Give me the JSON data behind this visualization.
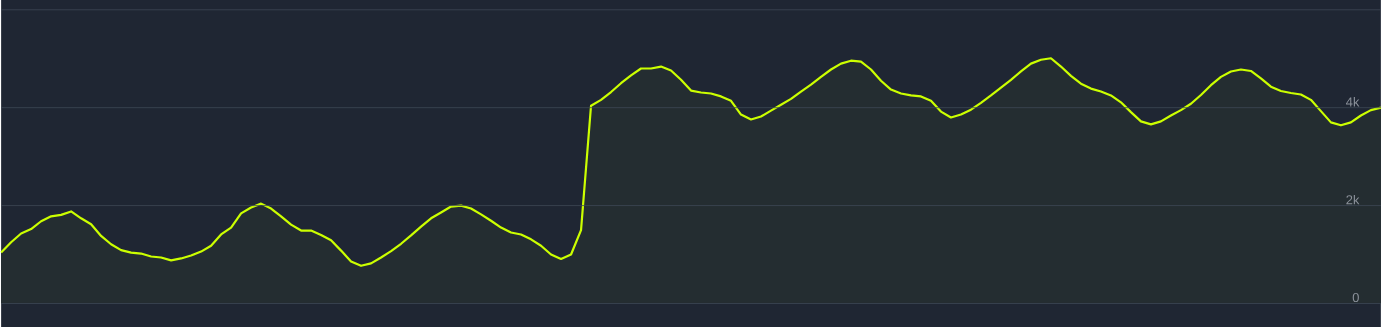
{
  "chart_data": {
    "type": "area",
    "color": "#ccff00",
    "grid": "y",
    "tick_labels": "y",
    "ylim": [
      -490,
      6200
    ],
    "yticks": [
      {
        "value": 0,
        "label": "0"
      },
      {
        "value": 2000,
        "label": "2k"
      },
      {
        "value": 4000,
        "label": "4k"
      },
      {
        "value": 6000,
        "label": null
      }
    ],
    "categories": [
      null,
      null,
      null,
      null,
      null,
      null,
      null,
      null,
      null,
      null,
      null,
      null,
      null,
      null,
      null,
      null,
      null,
      null,
      null,
      null,
      null,
      null,
      null,
      null,
      null,
      null,
      null,
      null,
      null,
      null,
      null,
      null,
      null,
      null,
      null,
      null,
      null,
      null,
      null,
      null,
      null,
      null,
      null,
      null,
      null,
      null,
      null,
      null,
      null,
      null,
      null,
      null,
      null,
      null,
      null,
      null,
      null,
      null,
      null,
      null,
      null,
      null,
      null,
      null,
      null,
      null,
      null,
      null,
      null,
      null,
      null,
      null,
      null,
      null,
      null,
      null,
      null,
      null,
      null,
      null,
      null,
      null,
      null,
      null,
      null,
      null,
      null,
      null,
      null,
      null,
      null,
      null,
      null,
      null,
      null,
      null,
      null,
      null,
      null,
      null,
      null,
      null,
      null,
      null,
      null,
      null,
      null,
      null,
      null,
      null,
      null,
      null,
      null,
      null,
      null,
      null,
      null,
      null,
      null,
      null,
      null,
      null,
      null,
      null,
      null,
      null,
      null,
      null,
      null,
      null,
      null,
      null,
      null,
      null,
      null,
      null,
      null,
      null,
      null
    ],
    "values": [
      1040,
      1250,
      1430,
      1520,
      1680,
      1780,
      1810,
      1880,
      1740,
      1620,
      1380,
      1210,
      1090,
      1040,
      1020,
      960,
      940,
      880,
      920,
      980,
      1060,
      1180,
      1410,
      1550,
      1840,
      1960,
      2040,
      1940,
      1780,
      1610,
      1490,
      1490,
      1400,
      1290,
      1080,
      860,
      770,
      820,
      940,
      1070,
      1220,
      1390,
      1570,
      1740,
      1860,
      1980,
      2000,
      1940,
      1820,
      1690,
      1550,
      1450,
      1410,
      1310,
      1180,
      1000,
      910,
      1000,
      1500,
      4040,
      4160,
      4320,
      4500,
      4660,
      4800,
      4800,
      4840,
      4760,
      4570,
      4350,
      4310,
      4290,
      4230,
      4140,
      3860,
      3760,
      3820,
      3940,
      4060,
      4180,
      4330,
      4470,
      4630,
      4780,
      4900,
      4960,
      4940,
      4780,
      4550,
      4370,
      4290,
      4250,
      4230,
      4140,
      3920,
      3800,
      3860,
      3960,
      4100,
      4250,
      4410,
      4570,
      4740,
      4900,
      4980,
      5010,
      4840,
      4650,
      4490,
      4390,
      4330,
      4250,
      4110,
      3910,
      3720,
      3660,
      3720,
      3840,
      3950,
      4080,
      4260,
      4460,
      4630,
      4740,
      4780,
      4750,
      4600,
      4430,
      4340,
      4300,
      4270,
      4160,
      3930,
      3700,
      3640,
      3700,
      3840,
      3950,
      4000
    ]
  }
}
